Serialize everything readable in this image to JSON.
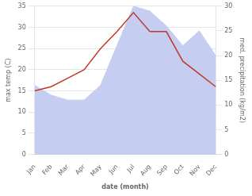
{
  "chart_data": {
    "type": "line",
    "xlabel": "date (month)",
    "ylabel": "max temp (C)",
    "y2label": "med. precipitation (kg/m2)",
    "categories": [
      "Jan",
      "Feb",
      "Mar",
      "Apr",
      "May",
      "Jun",
      "Jul",
      "Aug",
      "Sep",
      "Oct",
      "Nov",
      "Dec"
    ],
    "series": [
      {
        "type": "area",
        "color": "#c5cef0",
        "axis": "y2",
        "values": [
          14.0,
          12.0,
          11.0,
          11.0,
          14.0,
          22.0,
          30.0,
          29.0,
          26.0,
          22.0,
          25.0,
          20.0
        ]
      },
      {
        "type": "line",
        "color": "#c0392b",
        "values": [
          15.0,
          16.0,
          18.0,
          20.0,
          25.0,
          29.0,
          33.5,
          29.0,
          29.0,
          22.0,
          19.0,
          16.0
        ]
      }
    ],
    "ylim": [
      0,
      35
    ],
    "yticks": [
      0,
      5,
      10,
      15,
      20,
      25,
      30,
      35
    ],
    "y2lim": [
      0,
      30
    ],
    "y2ticks": [
      0,
      5,
      10,
      15,
      20,
      25,
      30
    ],
    "grid": true
  }
}
